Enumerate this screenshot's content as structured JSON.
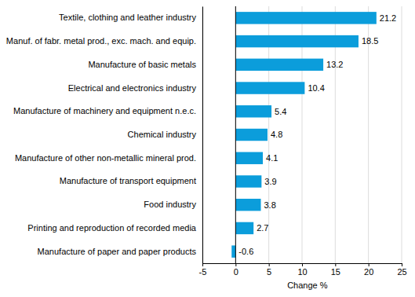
{
  "chart_data": {
    "type": "bar",
    "orientation": "horizontal",
    "x_label": "Change %",
    "categories": [
      "Textile, clothing and leather industry",
      "Manuf. of fabr. metal prod., exc. mach. and equip.",
      "Manufacture of basic metals",
      "Electrical and electronics industry",
      "Manufacture of machinery and equipment n.e.c.",
      "Chemical industry",
      "Manufacture of other non-metallic mineral prod.",
      "Manufacture of transport equipment",
      "Food industry",
      "Printing and reproduction of recorded media",
      "Manufacture of paper and paper products"
    ],
    "values": [
      21.2,
      18.5,
      13.2,
      10.4,
      5.4,
      4.8,
      4.1,
      3.9,
      3.8,
      2.7,
      -0.6
    ],
    "color": "#0b9ddb",
    "xlim": [
      -5,
      25
    ],
    "xticks": [
      -5,
      0,
      5,
      10,
      15,
      20,
      25
    ],
    "grid": true,
    "data_labels": true
  }
}
